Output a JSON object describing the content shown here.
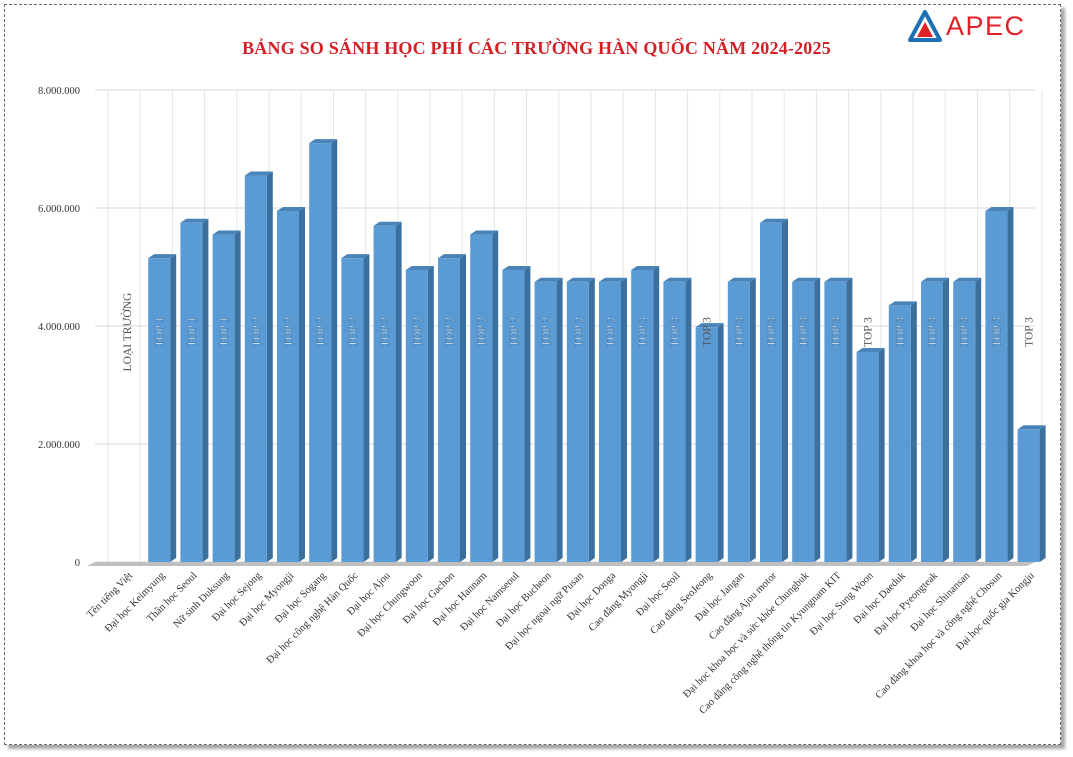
{
  "brand": {
    "name": "APEC",
    "accent": "#e02128",
    "logo_blue": "#1f6fb5"
  },
  "title": "BẢNG SO SÁNH HỌC PHÍ CÁC TRƯỜNG HÀN QUỐC NĂM 2024-2025",
  "chart_data": {
    "type": "bar",
    "title": "BẢNG SO SÁNH HỌC PHÍ CÁC TRƯỜNG HÀN QUỐC NĂM 2024-2025",
    "xlabel": "",
    "ylabel": "",
    "ylim": [
      0,
      8000000
    ],
    "yticks": [
      0,
      2000000,
      4000000,
      6000000,
      8000000
    ],
    "ytick_labels": [
      "0",
      "2.000.000",
      "4.000.000",
      "6.000.000",
      "8.000.000"
    ],
    "grid": true,
    "bar_color": "#5b9bd5",
    "categories": [
      "Tên tiếng Việt",
      "Đại học Keimyung",
      "Thần học Seoul",
      "Nữ sinh Duksung",
      "Đại học Sejong",
      "Đại học Myongji",
      "Đại học Sogang",
      "Đại học công nghệ Hàn Quốc",
      "Đại học Ajou",
      "Đại học Chungwoon",
      "Đại học Gachon",
      "Đại học Hannam",
      "Đại học Namseoul",
      "Đại học Bucheon",
      "Đại học ngoại ngữ Pusan",
      "Đại học Donga",
      "Cao đẳng Myongji",
      "Đại học Seoil",
      "Cao đẳng SeoJeong",
      "Đại học Jangan",
      "Cao đẳng Ajou motor",
      "Đại học khoa học và sức khỏe Chungbuk",
      "Cao đẳng công nghệ thông tin Kyungnam KIT",
      "Đại học Sung Woon",
      "Đại học Daeduk",
      "Đại học Pyeongteak",
      "Đại học Shinansan",
      "Cao đẳng khoa học và công nghệ Chosun",
      "Đại học quốc gia Kongju"
    ],
    "values": [
      null,
      5150000,
      5750000,
      5550000,
      6550000,
      5950000,
      7100000,
      5150000,
      5700000,
      4950000,
      5150000,
      5550000,
      4950000,
      4750000,
      4750000,
      4750000,
      4950000,
      4750000,
      3980000,
      4750000,
      5750000,
      4750000,
      4750000,
      3560000,
      4350000,
      4750000,
      4750000,
      5950000,
      2250000
    ],
    "data_labels": [
      "LOẠI TRƯỜNG",
      "TOP 1",
      "TOP 1",
      "TOP 1",
      "TOP 2",
      "TOP 2",
      "TOP 2",
      "TOP 2",
      "TOP 2",
      "TOP 2",
      "TOP 2",
      "TOP 2",
      "TOP 2",
      "TOP 2",
      "TOP 2",
      "TOP 2",
      "TOP 3",
      "TOP 3",
      "TOP 3",
      "TOP 3",
      "TOP 3",
      "TOP 3",
      "TOP 3",
      "TOP 3",
      "TOP 3",
      "TOP 3",
      "TOP 3",
      "TOP 3",
      "TOP 3"
    ]
  }
}
